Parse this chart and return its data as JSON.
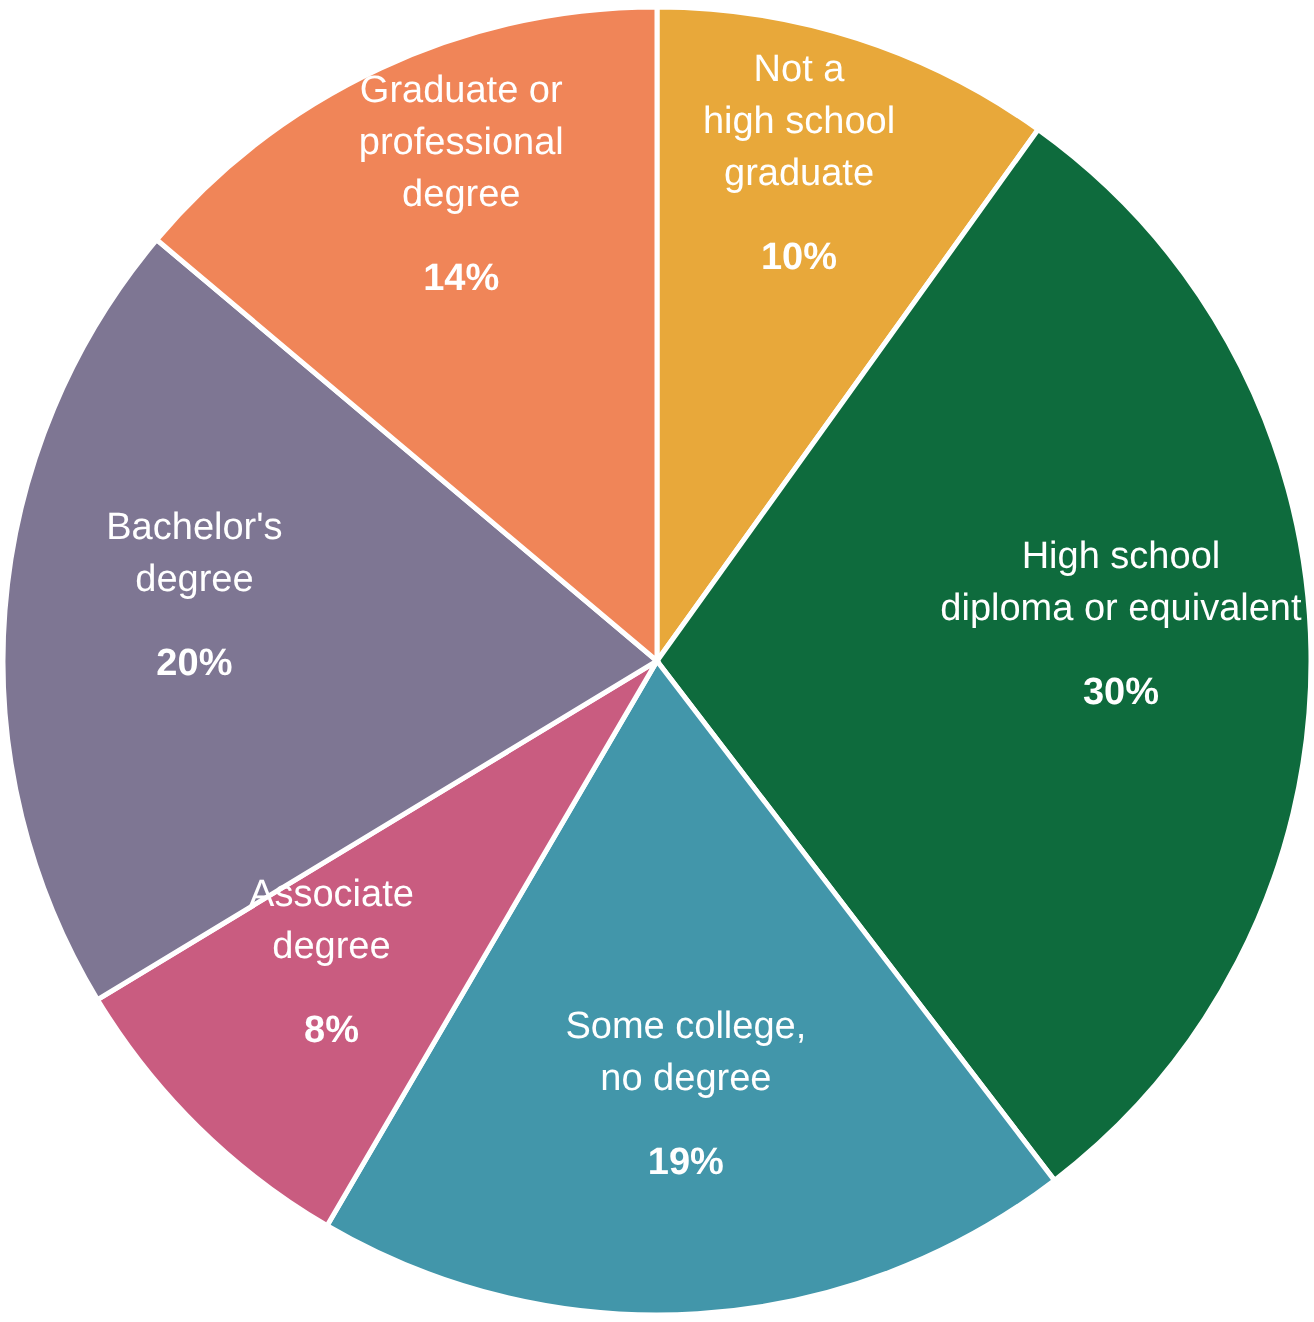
{
  "chart_data": {
    "type": "pie",
    "categories": [
      "Not a\nhigh school\ngraduate",
      "High school\ndiploma or equivalent",
      "Some college,\nno degree",
      "Associate\ndegree",
      "Bachelor's\ndegree",
      "Graduate or\nprofessional\ndegree"
    ],
    "values": [
      10,
      30,
      19,
      8,
      20,
      14
    ],
    "value_labels": [
      "10%",
      "30%",
      "19%",
      "8%",
      "20%",
      "14%"
    ],
    "colors": [
      "#e8a83a",
      "#0e6b3d",
      "#4296aa",
      "#c95c80",
      "#7e7693",
      "#f08558"
    ]
  }
}
